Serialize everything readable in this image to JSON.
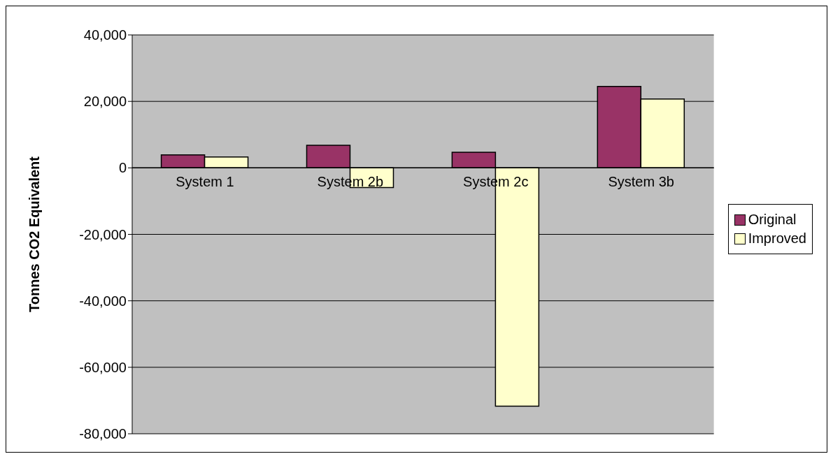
{
  "chart_data": {
    "type": "bar",
    "ylabel": "Tonnes CO2 Equivalent",
    "categories": [
      "System 1",
      "System 2b",
      "System 2c",
      "System 3b"
    ],
    "series": [
      {
        "name": "Original",
        "color": "#993366",
        "values": [
          3900,
          6800,
          4700,
          24500
        ]
      },
      {
        "name": "Improved",
        "color": "#ffffcc",
        "values": [
          3300,
          -5900,
          -71700,
          20700
        ]
      }
    ],
    "ylim": [
      -80000,
      40000
    ],
    "yticks": [
      {
        "value": -80000,
        "label": "-80,000"
      },
      {
        "value": -60000,
        "label": "-60,000"
      },
      {
        "value": -40000,
        "label": "-40,000"
      },
      {
        "value": -20000,
        "label": "-20,000"
      },
      0,
      {
        "value": 20000,
        "label": "20,000"
      },
      {
        "value": 40000,
        "label": "40,000"
      }
    ],
    "grid": "y",
    "legend": "right"
  }
}
